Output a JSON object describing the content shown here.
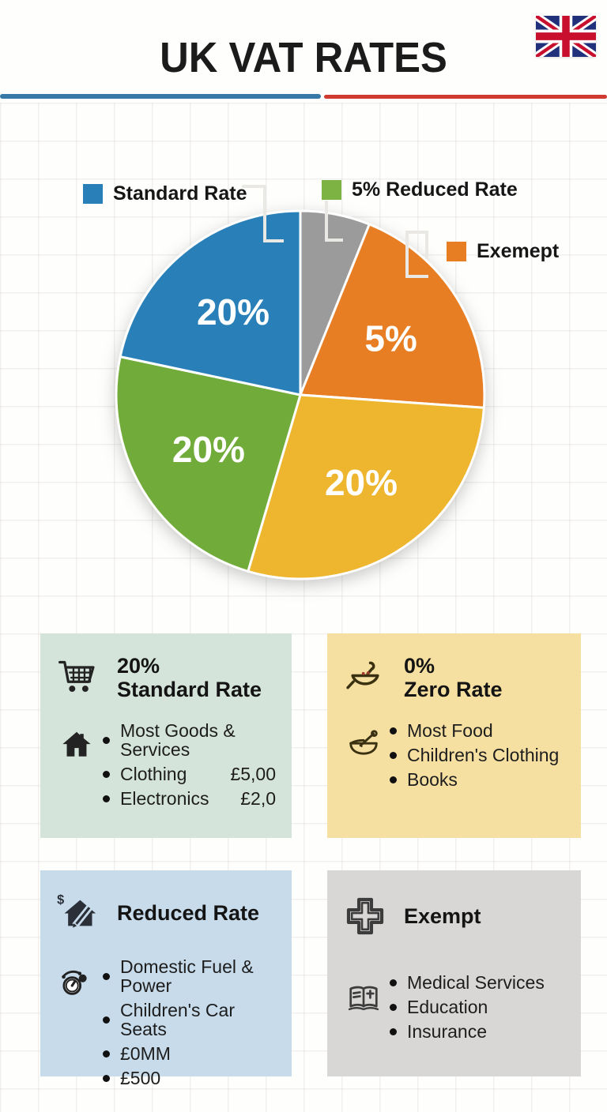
{
  "header": {
    "title": "UK VAT RATES",
    "flag": "united-kingdom-flag",
    "divider_left_color": "#3679a6",
    "divider_right_color": "#cf3b30"
  },
  "chart_data": {
    "type": "pie",
    "title": "UK VAT RATES",
    "legend_position": "top",
    "grid": false,
    "legend": [
      {
        "label": "Standard Rate",
        "color": "#2980b9"
      },
      {
        "label": "5% Reduced Rate",
        "color": "#7cb342"
      },
      {
        "label": "Exemept",
        "color": "#e87e23"
      }
    ],
    "slices": [
      {
        "name": "unlabeled-gray",
        "label": "",
        "start_deg": 0,
        "end_deg": 22,
        "approx_pct": 6.1,
        "color": "#9b9b9b"
      },
      {
        "name": "exempt",
        "label": "5%",
        "start_deg": 22,
        "end_deg": 94,
        "approx_pct": 20.0,
        "color": "#e87e23"
      },
      {
        "name": "zero-rate",
        "label": "20%",
        "start_deg": 94,
        "end_deg": 196.5,
        "approx_pct": 28.5,
        "color": "#eeb62f"
      },
      {
        "name": "reduced-rate",
        "label": "20%",
        "start_deg": 196.5,
        "end_deg": 282,
        "approx_pct": 23.7,
        "color": "#71ab3a"
      },
      {
        "name": "standard-rate",
        "label": "20%",
        "start_deg": 282,
        "end_deg": 360,
        "approx_pct": 21.7,
        "color": "#2980b9"
      }
    ],
    "center": [
      380,
      500
    ],
    "radius": 233,
    "label_color": "#ffffff",
    "label_radius_fraction": 0.58
  },
  "cards": [
    {
      "id": "standard-rate",
      "bg": "#d5e4da",
      "rate": "20%",
      "title": "Standard Rate",
      "header_icon": "shopping-cart-icon",
      "body_icon": "house-icon",
      "items": [
        {
          "text": "Most Goods & Services",
          "value": ""
        },
        {
          "text": "Clothing",
          "value": "£5,00"
        },
        {
          "text": "Electronics",
          "value": "£2,0"
        }
      ]
    },
    {
      "id": "zero-rate",
      "bg": "#f5dfa1",
      "rate": "0%",
      "title": "Zero Rate",
      "header_icon": "saucepan-icon",
      "body_icon": "mortar-bowl-icon",
      "items": [
        {
          "text": "Most Food",
          "value": ""
        },
        {
          "text": "Children's Clothing",
          "value": ""
        },
        {
          "text": "Books",
          "value": ""
        }
      ]
    },
    {
      "id": "reduced-rate",
      "bg": "#c7dbeb",
      "rate": "",
      "title": "Reduced Rate",
      "header_icon": "house-pencil-dollar-icon",
      "body_icon": "gauge-icon",
      "items": [
        {
          "text": "Domestic Fuel & Power",
          "value": ""
        },
        {
          "text": "Children's Car Seats",
          "value": ""
        },
        {
          "text": "£0MM",
          "value": ""
        },
        {
          "text": "£500",
          "value": ""
        }
      ]
    },
    {
      "id": "exempt",
      "bg": "#d8d7d5",
      "rate": "",
      "title": "Exempt",
      "header_icon": "medical-cross-icon",
      "body_icon": "open-book-cross-icon",
      "items": [
        {
          "text": "Medical Services",
          "value": ""
        },
        {
          "text": "Education",
          "value": ""
        },
        {
          "text": "Insurance",
          "value": ""
        }
      ]
    }
  ]
}
